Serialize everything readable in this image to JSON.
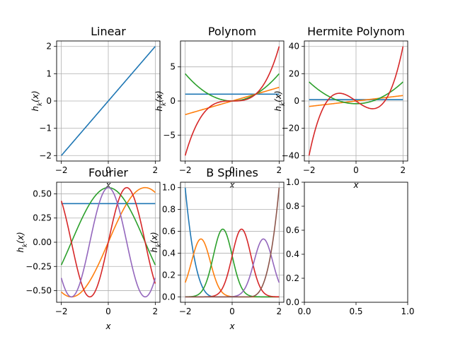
{
  "chart_data": [
    {
      "type": "line",
      "title": "Linear",
      "xlabel": "x",
      "ylabel": "h_k(x)",
      "xlim": [
        -2.2,
        2.2
      ],
      "ylim": [
        -2.2,
        2.2
      ],
      "xticks": [
        -2,
        0,
        2
      ],
      "yticks": [
        -2,
        -1,
        0,
        1,
        2
      ],
      "grid": true,
      "basis": "linear",
      "series": [
        {
          "color": "#1f77b4",
          "x": [
            -2,
            2
          ],
          "y": [
            -2,
            2
          ]
        }
      ]
    },
    {
      "type": "line",
      "title": "Polynom",
      "xlabel": "x",
      "ylabel": "h_k(x)",
      "xlim": [
        -2.2,
        2.2
      ],
      "ylim": [
        -8.8,
        8.8
      ],
      "xticks": [
        -2,
        0,
        2
      ],
      "yticks": [
        -5,
        0,
        5
      ],
      "grid": true,
      "basis": "polynomial",
      "series": [
        {
          "color": "#1f77b4",
          "x": [
            -2,
            -1,
            0,
            1,
            2
          ],
          "y": [
            1,
            1,
            1,
            1,
            1
          ]
        },
        {
          "color": "#ff7f0e",
          "x": [
            -2,
            -1,
            0,
            1,
            2
          ],
          "y": [
            -2,
            -1,
            0,
            1,
            2
          ]
        },
        {
          "color": "#2ca02c",
          "x": [
            -2,
            -1,
            0,
            1,
            2
          ],
          "y": [
            4,
            1,
            0,
            1,
            4
          ]
        },
        {
          "color": "#d62728",
          "x": [
            -2,
            -1,
            0,
            1,
            2
          ],
          "y": [
            -8,
            -1,
            0,
            1,
            8
          ]
        }
      ]
    },
    {
      "type": "line",
      "title": "Hermite Polynom",
      "xlabel": "x",
      "ylabel": "h_k(x)",
      "xlim": [
        -2.2,
        2.2
      ],
      "ylim": [
        -44,
        44
      ],
      "xticks": [
        -2,
        0,
        2
      ],
      "yticks": [
        -40,
        -20,
        0,
        20,
        40
      ],
      "grid": true,
      "basis": "hermite",
      "series": [
        {
          "color": "#1f77b4",
          "x": [
            -2,
            -1,
            0,
            1,
            2
          ],
          "y": [
            1,
            1,
            1,
            1,
            1
          ]
        },
        {
          "color": "#ff7f0e",
          "x": [
            -2,
            -1,
            0,
            1,
            2
          ],
          "y": [
            -4,
            -2,
            0,
            2,
            4
          ]
        },
        {
          "color": "#2ca02c",
          "x": [
            -2,
            -1,
            0,
            1,
            2
          ],
          "y": [
            14,
            2,
            -2,
            2,
            14
          ]
        },
        {
          "color": "#d62728",
          "x": [
            -2,
            -1,
            0,
            1,
            2
          ],
          "y": [
            -40,
            4,
            0,
            -4,
            40
          ]
        }
      ]
    },
    {
      "type": "line",
      "title": "Fourier",
      "xlabel": "x",
      "ylabel": "h_k(x)",
      "xlim": [
        -2.2,
        2.2
      ],
      "ylim": [
        -0.62,
        0.62
      ],
      "xticks": [
        -2,
        0,
        2
      ],
      "yticks": [
        -0.5,
        -0.25,
        0,
        0.25,
        0.5
      ],
      "ytick_labels": [
        "−0.50",
        "−0.25",
        "0.00",
        "0.25",
        "0.50"
      ],
      "grid": true,
      "basis": "fourier",
      "series": [
        {
          "color": "#1f77b4",
          "x": [
            -2,
            0,
            2
          ],
          "y": [
            0.4,
            0.4,
            0.4
          ]
        },
        {
          "color": "#ff7f0e",
          "x": [
            -2,
            -1.5,
            0,
            1.5,
            2
          ],
          "y": [
            -0.52,
            -0.56,
            0,
            0.56,
            0.52
          ]
        },
        {
          "color": "#2ca02c",
          "x": [
            -2,
            0,
            2
          ],
          "y": [
            -0.23,
            0.56,
            -0.23
          ]
        },
        {
          "color": "#d62728",
          "x": [
            -2,
            -0.8,
            0,
            0.8,
            2
          ],
          "y": [
            0.43,
            -0.56,
            0,
            0.56,
            -0.43
          ]
        },
        {
          "color": "#9467bd",
          "x": [
            -2,
            -1.6,
            0,
            1.6,
            2
          ],
          "y": [
            -0.37,
            -0.56,
            0.56,
            -0.56,
            -0.37
          ]
        }
      ]
    },
    {
      "type": "line",
      "title": "B Splines",
      "xlabel": "x",
      "ylabel": "h_k(x)",
      "xlim": [
        -2.2,
        2.2
      ],
      "ylim": [
        -0.05,
        1.05
      ],
      "xticks": [
        -2,
        0,
        2
      ],
      "yticks": [
        0,
        0.2,
        0.4,
        0.6,
        0.8,
        1.0
      ],
      "ytick_labels": [
        "0.0",
        "0.2",
        "0.4",
        "0.6",
        "0.8",
        "1.0"
      ],
      "grid": true,
      "basis": "bspline",
      "series": [
        {
          "color": "#1f77b4",
          "peak_x": -2,
          "peak_y": 1.0
        },
        {
          "color": "#ff7f0e",
          "peak_x": -1.33,
          "peak_y": 0.53
        },
        {
          "color": "#2ca02c",
          "peak_x": -0.4,
          "peak_y": 0.62
        },
        {
          "color": "#d62728",
          "peak_x": 0.4,
          "peak_y": 0.62
        },
        {
          "color": "#9467bd",
          "peak_x": 1.33,
          "peak_y": 0.53
        },
        {
          "color": "#8c564b",
          "peak_x": 2,
          "peak_y": 1.0
        }
      ]
    },
    {
      "type": "line",
      "title": "",
      "xlabel": "",
      "ylabel": "",
      "xlim": [
        0,
        1
      ],
      "ylim": [
        0,
        1
      ],
      "xticks": [
        0,
        0.5,
        1.0
      ],
      "yticks": [
        0,
        0.2,
        0.4,
        0.6,
        0.8,
        1.0
      ],
      "xtick_labels": [
        "0.0",
        "0.5",
        "1.0"
      ],
      "ytick_labels": [
        "0.0",
        "0.2",
        "0.4",
        "0.6",
        "0.8",
        "1.0"
      ],
      "grid": false,
      "basis": "empty",
      "series": []
    }
  ]
}
